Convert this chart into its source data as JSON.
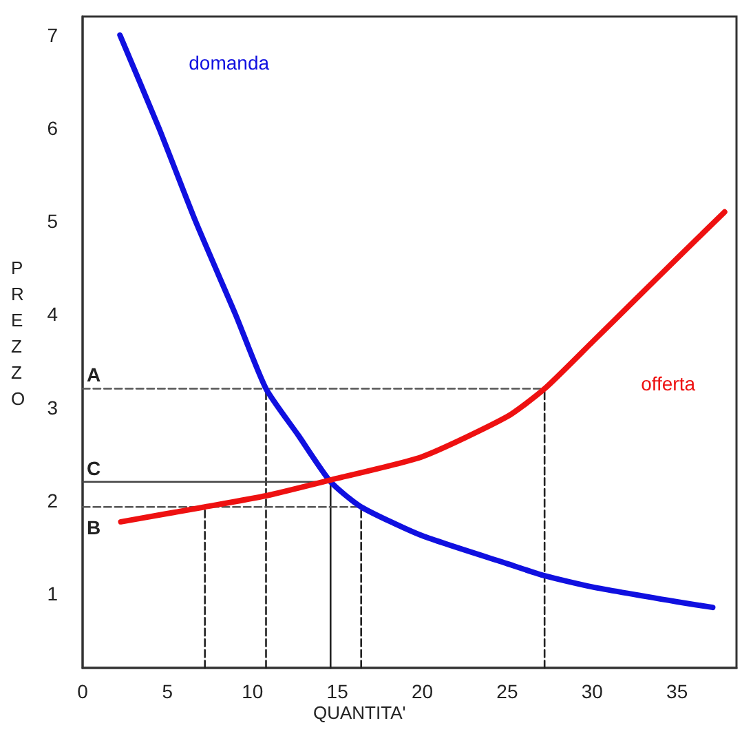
{
  "chart_data": {
    "type": "line",
    "xlabel": "QUANTITA'",
    "ylabel": "PREZZO",
    "xlim": [
      0,
      38.5
    ],
    "ylim": [
      0.2,
      7.2
    ],
    "xticks": [
      0,
      5,
      10,
      15,
      20,
      25,
      30,
      35
    ],
    "yticks": [
      1,
      2,
      3,
      4,
      5,
      6,
      7
    ],
    "grid": false,
    "legend": false,
    "marker": "none",
    "series": [
      {
        "name": "domanda",
        "color": "#1010e0",
        "line_style": "solid",
        "x": [
          2.2,
          4.5,
          6.65,
          9.0,
          10.8,
          12.7,
          14.6,
          16.4,
          20,
          25,
          27.2,
          30,
          35,
          37.1
        ],
        "values": [
          7.0,
          6.0,
          5.0,
          4.0,
          3.2,
          2.7,
          2.2,
          1.93,
          1.62,
          1.32,
          1.19,
          1.07,
          0.91,
          0.85
        ]
      },
      {
        "name": "offerta",
        "color": "#ee1111",
        "line_style": "solid",
        "x": [
          2.25,
          7.2,
          10.8,
          14.6,
          20,
          25,
          27.2,
          30,
          32.5,
          35,
          37.8
        ],
        "values": [
          1.77,
          1.93,
          2.05,
          2.22,
          2.47,
          2.9,
          3.2,
          3.7,
          4.15,
          4.6,
          5.1
        ]
      },
      {
        "color": "#555555",
        "line_style": "dashed",
        "x": [
          0,
          27.2
        ],
        "values": [
          3.2,
          3.2
        ]
      },
      {
        "color": "#222222",
        "line_style": "dashed",
        "x": [
          10.8,
          10.8
        ],
        "values": [
          0.2,
          3.2
        ]
      },
      {
        "color": "#222222",
        "line_style": "dashed",
        "x": [
          27.2,
          27.2
        ],
        "values": [
          0.2,
          3.2
        ]
      },
      {
        "color": "#444444",
        "line_style": "solid",
        "x": [
          0,
          14.6
        ],
        "values": [
          2.2,
          2.2
        ]
      },
      {
        "color": "#222222",
        "line_style": "solid",
        "x": [
          14.6,
          14.6
        ],
        "values": [
          0.2,
          2.2
        ]
      },
      {
        "color": "#555555",
        "line_style": "dashed",
        "x": [
          0,
          16.4
        ],
        "values": [
          1.93,
          1.93
        ]
      },
      {
        "color": "#222222",
        "line_style": "dashed",
        "x": [
          7.2,
          7.2
        ],
        "values": [
          0.2,
          1.93
        ]
      },
      {
        "color": "#222222",
        "line_style": "dashed",
        "x": [
          16.4,
          16.4
        ],
        "values": [
          0.2,
          1.93
        ]
      }
    ],
    "annotations": [
      "A",
      "C",
      "B"
    ]
  }
}
